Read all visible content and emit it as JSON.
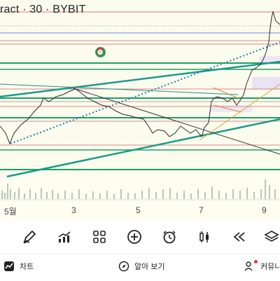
{
  "chart": {
    "title": "ract · 30 · BYBIT",
    "x_labels": [
      "5월",
      "3",
      "5",
      "7",
      "9"
    ],
    "alarm_icon": "alarm-clock-icon"
  },
  "toolbar": {
    "tools": [
      {
        "name": "draw-tool",
        "icon": "pen-icon"
      },
      {
        "name": "indicators-tool",
        "icon": "chart-icon"
      },
      {
        "name": "layout-tool",
        "icon": "grid-icon"
      },
      {
        "name": "add-tool",
        "icon": "plus-icon"
      },
      {
        "name": "alert-tool",
        "icon": "alarm-clock-icon"
      },
      {
        "name": "chart-type-tool",
        "icon": "candles-icon"
      },
      {
        "name": "replay-tool",
        "icon": "rewind-icon"
      },
      {
        "name": "layers-tool",
        "icon": "layers-icon"
      }
    ]
  },
  "bottom_nav": {
    "chart_label": "차트",
    "explore_label": "알아 보기",
    "community_label": "커뮤니"
  },
  "colors": {
    "chart_bg": "#fdfdf0",
    "trend_green": "#1e9f66",
    "trend_teal": "#1a9a8a",
    "level_red": "#d96a6a",
    "candle_up": "#2ba18c",
    "candle_down": "#e05a5a"
  }
}
